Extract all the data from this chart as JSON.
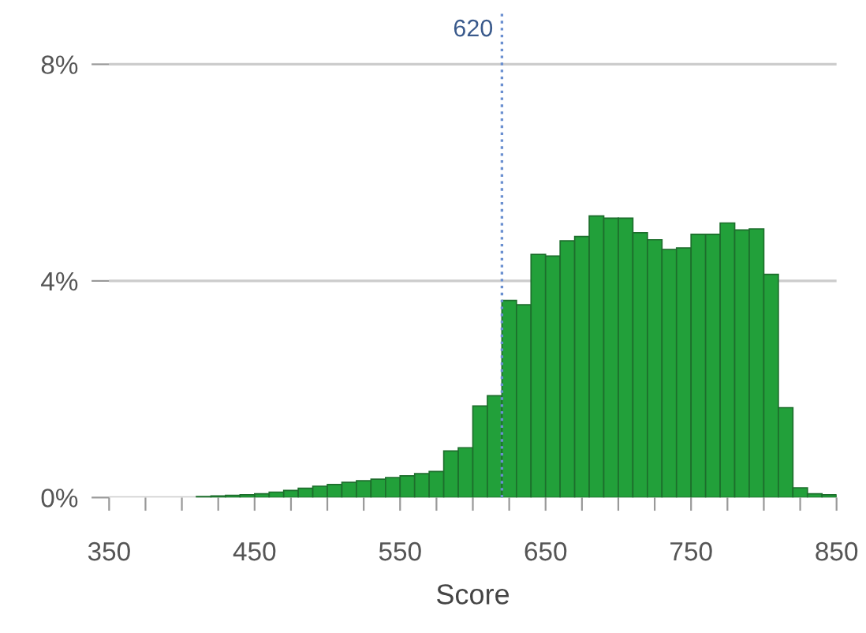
{
  "chart_data": {
    "type": "histogram",
    "xlabel": "Score",
    "bins": [
      410,
      420,
      430,
      440,
      450,
      460,
      470,
      480,
      490,
      500,
      510,
      520,
      530,
      540,
      550,
      560,
      570,
      580,
      590,
      600,
      610,
      620,
      630,
      640,
      650,
      660,
      670,
      680,
      690,
      700,
      710,
      720,
      730,
      740,
      750,
      760,
      770,
      780,
      790,
      800,
      810,
      820,
      830,
      840,
      850
    ],
    "values": [
      0.02,
      0.03,
      0.04,
      0.05,
      0.07,
      0.1,
      0.13,
      0.17,
      0.21,
      0.24,
      0.28,
      0.31,
      0.34,
      0.37,
      0.4,
      0.44,
      0.48,
      0.86,
      0.92,
      1.69,
      1.88,
      3.64,
      3.56,
      4.49,
      4.46,
      4.74,
      4.82,
      5.2,
      5.16,
      5.16,
      4.89,
      4.76,
      4.58,
      4.61,
      4.86,
      4.86,
      5.07,
      4.94,
      4.96,
      4.12,
      1.66,
      0.18,
      0.07,
      0.05
    ],
    "color": "#22a03a",
    "xlim": [
      350,
      850
    ],
    "xticks": [
      350,
      {
        "value": 375,
        "label": null
      },
      {
        "value": 400,
        "label": null
      },
      {
        "value": 425,
        "label": null
      },
      450,
      {
        "value": 475,
        "label": null
      },
      {
        "value": 500,
        "label": null
      },
      {
        "value": 525,
        "label": null
      },
      550,
      {
        "value": 575,
        "label": null
      },
      {
        "value": 600,
        "label": null
      },
      {
        "value": 625,
        "label": null
      },
      650,
      {
        "value": 675,
        "label": null
      },
      {
        "value": 700,
        "label": null
      },
      {
        "value": 725,
        "label": null
      },
      750,
      {
        "value": 775,
        "label": null
      },
      {
        "value": 800,
        "label": null
      },
      {
        "value": 825,
        "label": null
      },
      850
    ],
    "ylim": [
      0,
      9
    ],
    "yticks": [
      {
        "value": 0,
        "label": "0%"
      },
      {
        "value": 4,
        "label": "4%"
      },
      {
        "value": 8,
        "label": "8%"
      }
    ],
    "grid": "y",
    "ref_lines": [
      {
        "axis": "x",
        "value": 620,
        "label": "620",
        "color": "#6a8fd0",
        "line_style": "dotted"
      }
    ]
  }
}
